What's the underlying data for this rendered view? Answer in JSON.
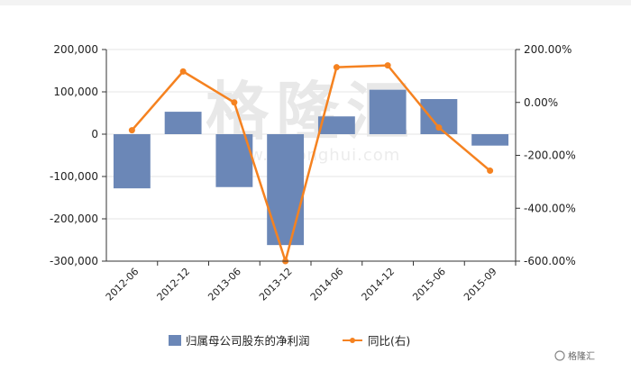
{
  "chart_data": {
    "type": "bar",
    "categories": [
      "2012-06",
      "2012-12",
      "2013-06",
      "2013-12",
      "2014-06",
      "2014-12",
      "2015-06",
      "2015-09"
    ],
    "series": [
      {
        "name": "归属母公司股东的净利润",
        "type": "bar",
        "axis": "left",
        "color": "#6b87b7",
        "values": [
          -128000,
          53000,
          -125000,
          -262000,
          42000,
          105000,
          83000,
          -27000
        ]
      },
      {
        "name": "同比(右)",
        "type": "line",
        "axis": "right",
        "color": "#f58220",
        "values": [
          -105,
          117,
          0,
          -600,
          133,
          140,
          -95,
          -258
        ]
      }
    ],
    "left_axis": {
      "ylim": [
        -300000,
        200000
      ],
      "ticks": [
        200000,
        100000,
        0,
        -100000,
        -200000,
        -300000
      ],
      "tick_labels": [
        "200,000",
        "100,000",
        "0",
        "-100,000",
        "-200,000",
        "-300,000"
      ]
    },
    "right_axis": {
      "ylim": [
        -600,
        200
      ],
      "ticks": [
        200,
        0,
        -200,
        -400,
        -600
      ],
      "tick_labels": [
        "200.00%",
        "0.00%",
        "-200.00%",
        "-400.00%",
        "-600.00%"
      ]
    },
    "legend_position": "bottom",
    "grid": true
  },
  "watermark": {
    "text": "格隆汇",
    "url": "www.gelonghui.com"
  },
  "brand_label": "格隆汇",
  "colors": {
    "bar": "#6b87b7",
    "line": "#f58220",
    "grid": "#e6e6e6",
    "axis": "#333333"
  }
}
